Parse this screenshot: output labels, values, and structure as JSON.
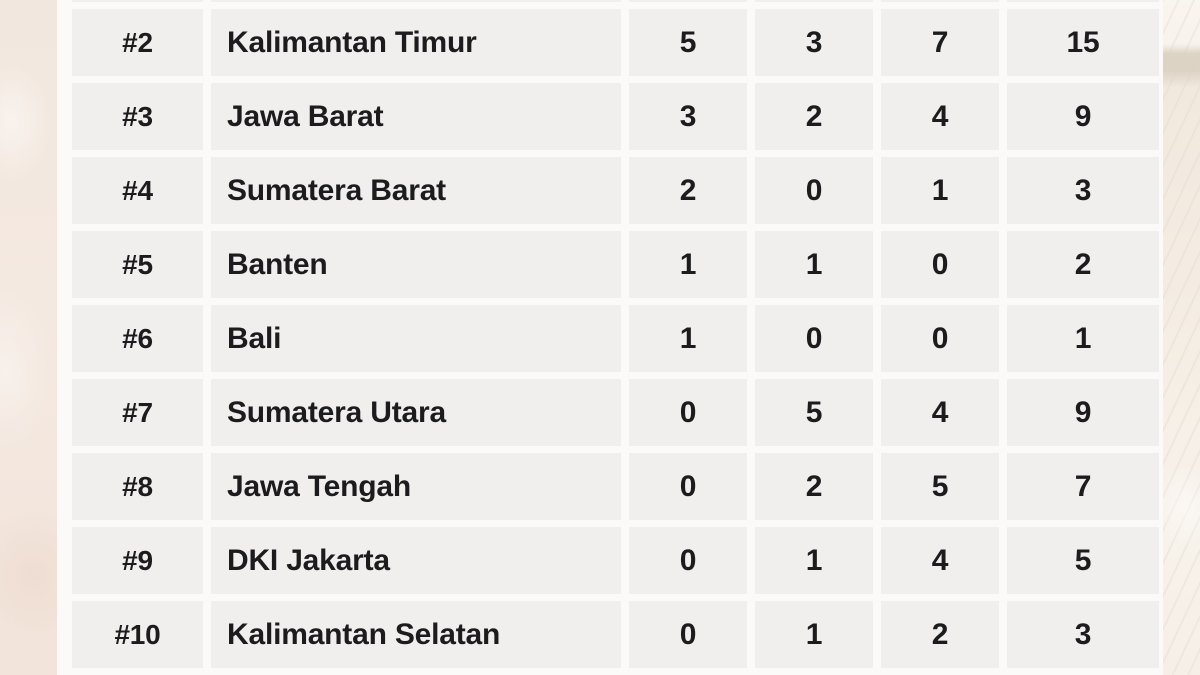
{
  "table": {
    "rows": [
      {
        "rank": "#2",
        "province": "Kalimantan Timur",
        "values": [
          "5",
          "3",
          "7",
          "15"
        ]
      },
      {
        "rank": "#3",
        "province": "Jawa Barat",
        "values": [
          "3",
          "2",
          "4",
          "9"
        ]
      },
      {
        "rank": "#4",
        "province": "Sumatera Barat",
        "values": [
          "2",
          "0",
          "1",
          "3"
        ]
      },
      {
        "rank": "#5",
        "province": "Banten",
        "values": [
          "1",
          "1",
          "0",
          "2"
        ]
      },
      {
        "rank": "#6",
        "province": "Bali",
        "values": [
          "1",
          "0",
          "0",
          "1"
        ]
      },
      {
        "rank": "#7",
        "province": "Sumatera Utara",
        "values": [
          "0",
          "5",
          "4",
          "9"
        ]
      },
      {
        "rank": "#8",
        "province": "Jawa Tengah",
        "values": [
          "0",
          "2",
          "5",
          "7"
        ]
      },
      {
        "rank": "#9",
        "province": "DKI Jakarta",
        "values": [
          "0",
          "1",
          "4",
          "5"
        ]
      },
      {
        "rank": "#10",
        "province": "Kalimantan Selatan",
        "values": [
          "0",
          "1",
          "2",
          "3"
        ]
      }
    ]
  },
  "chart_data": {
    "type": "table",
    "visible_headers": [],
    "rows": [
      [
        "#2",
        "Kalimantan Timur",
        5,
        3,
        7,
        15
      ],
      [
        "#3",
        "Jawa Barat",
        3,
        2,
        4,
        9
      ],
      [
        "#4",
        "Sumatera Barat",
        2,
        0,
        1,
        3
      ],
      [
        "#5",
        "Banten",
        1,
        1,
        0,
        2
      ],
      [
        "#6",
        "Bali",
        1,
        0,
        0,
        1
      ],
      [
        "#7",
        "Sumatera Utara",
        0,
        5,
        4,
        9
      ],
      [
        "#8",
        "Jawa Tengah",
        0,
        2,
        5,
        7
      ],
      [
        "#9",
        "DKI Jakarta",
        0,
        1,
        4,
        5
      ],
      [
        "#10",
        "Kalimantan Selatan",
        0,
        1,
        2,
        3
      ]
    ],
    "layout": "ranked standings table, 9 visible rows, rank column + name column + 4 numeric columns, rows cropped at top (#1 hidden) "
  },
  "colors": {
    "page_background": "#f5ede4",
    "left_texture": "#f3e8e0",
    "right_texture": "#f4ece2",
    "tan_patch": "#ddd3c5",
    "table_background": "#fbfaf8",
    "cell_background": "#f0efee",
    "text": "#1c1c1e"
  }
}
